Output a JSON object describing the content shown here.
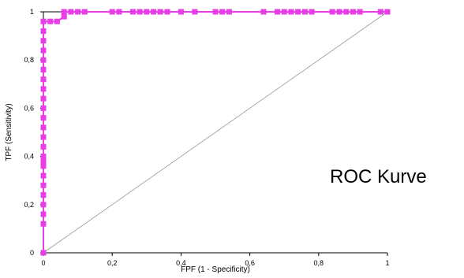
{
  "chart_data": {
    "type": "line",
    "xlabel": "FPF (1 - Specificity)",
    "ylabel": "TPF (Sensitivity)",
    "xlim": [
      0,
      1
    ],
    "ylim": [
      0,
      1
    ],
    "x_ticks": [
      "0",
      "0,2",
      "0,4",
      "0,6",
      "0,8",
      "1"
    ],
    "y_ticks": [
      "0",
      "0,2",
      "0,4",
      "0,6",
      "0,8",
      "1"
    ],
    "grid": false,
    "annotation": "ROC Kurve",
    "colors": {
      "roc": "#e83ee8",
      "reference": "#999999",
      "axes": "#000000"
    },
    "series": [
      {
        "points": [
          [
            0,
            0
          ],
          [
            0,
            0.12
          ],
          [
            0,
            0.16
          ],
          [
            0,
            0.2
          ],
          [
            0,
            0.24
          ],
          [
            0,
            0.28
          ],
          [
            0,
            0.32
          ],
          [
            0,
            0.36
          ],
          [
            0,
            0.38
          ],
          [
            0,
            0.4
          ],
          [
            0,
            0.44
          ],
          [
            0,
            0.48
          ],
          [
            0,
            0.52
          ],
          [
            0,
            0.56
          ],
          [
            0,
            0.6
          ],
          [
            0,
            0.64
          ],
          [
            0,
            0.68
          ],
          [
            0,
            0.72
          ],
          [
            0,
            0.76
          ],
          [
            0,
            0.8
          ],
          [
            0,
            0.84
          ],
          [
            0,
            0.88
          ],
          [
            0,
            0.92
          ],
          [
            0,
            0.96
          ],
          [
            0.02,
            0.96
          ],
          [
            0.04,
            0.96
          ],
          [
            0.06,
            0.98
          ],
          [
            0.06,
            1.0
          ],
          [
            0.08,
            1.0
          ],
          [
            0.1,
            1.0
          ],
          [
            0.12,
            1.0
          ],
          [
            0.2,
            1.0
          ],
          [
            0.22,
            1.0
          ],
          [
            0.26,
            1.0
          ],
          [
            0.28,
            1.0
          ],
          [
            0.3,
            1.0
          ],
          [
            0.32,
            1.0
          ],
          [
            0.34,
            1.0
          ],
          [
            0.36,
            1.0
          ],
          [
            0.4,
            1.0
          ],
          [
            0.44,
            1.0
          ],
          [
            0.5,
            1.0
          ],
          [
            0.52,
            1.0
          ],
          [
            0.54,
            1.0
          ],
          [
            0.64,
            1.0
          ],
          [
            0.68,
            1.0
          ],
          [
            0.7,
            1.0
          ],
          [
            0.72,
            1.0
          ],
          [
            0.74,
            1.0
          ],
          [
            0.76,
            1.0
          ],
          [
            0.78,
            1.0
          ],
          [
            0.84,
            1.0
          ],
          [
            0.86,
            1.0
          ],
          [
            0.88,
            1.0
          ],
          [
            0.9,
            1.0
          ],
          [
            0.92,
            1.0
          ],
          [
            0.98,
            1.0
          ],
          [
            1.0,
            1.0
          ]
        ]
      },
      {
        "points": [
          [
            0,
            0
          ],
          [
            1,
            1
          ]
        ]
      }
    ]
  }
}
